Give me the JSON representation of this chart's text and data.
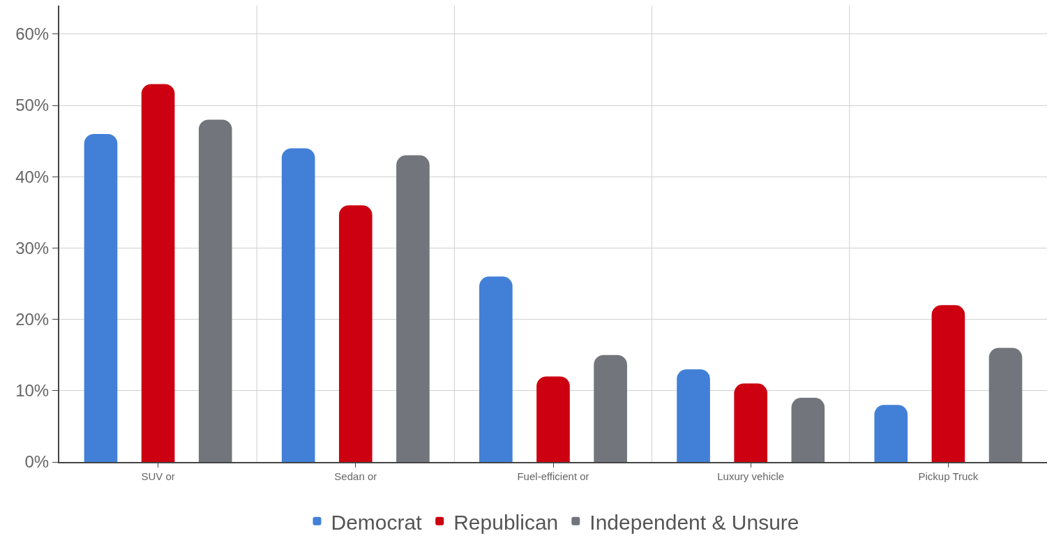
{
  "chart_data": {
    "type": "bar",
    "categories": [
      "SUV or",
      "Sedan or",
      "Fuel-efficient or",
      "Luxury vehicle",
      "Pickup Truck"
    ],
    "series": [
      {
        "name": "Democrat",
        "color": "#4280d8",
        "values": [
          46,
          44,
          26,
          13,
          8
        ]
      },
      {
        "name": "Republican",
        "color": "#cc0010",
        "values": [
          53,
          36,
          12,
          11,
          22
        ]
      },
      {
        "name": "Independent & Unsure",
        "color": "#72767c",
        "values": [
          48,
          43,
          15,
          9,
          16
        ]
      }
    ],
    "ylim": [
      0,
      64
    ],
    "yticks": [
      {
        "value": 0,
        "label": "0%"
      },
      {
        "value": 10,
        "label": "10%"
      },
      {
        "value": 20,
        "label": "20%"
      },
      {
        "value": 30,
        "label": "30%"
      },
      {
        "value": 40,
        "label": "40%"
      },
      {
        "value": 50,
        "label": "50%"
      },
      {
        "value": 60,
        "label": "60%"
      }
    ],
    "grid": true,
    "legend": "bottom"
  }
}
